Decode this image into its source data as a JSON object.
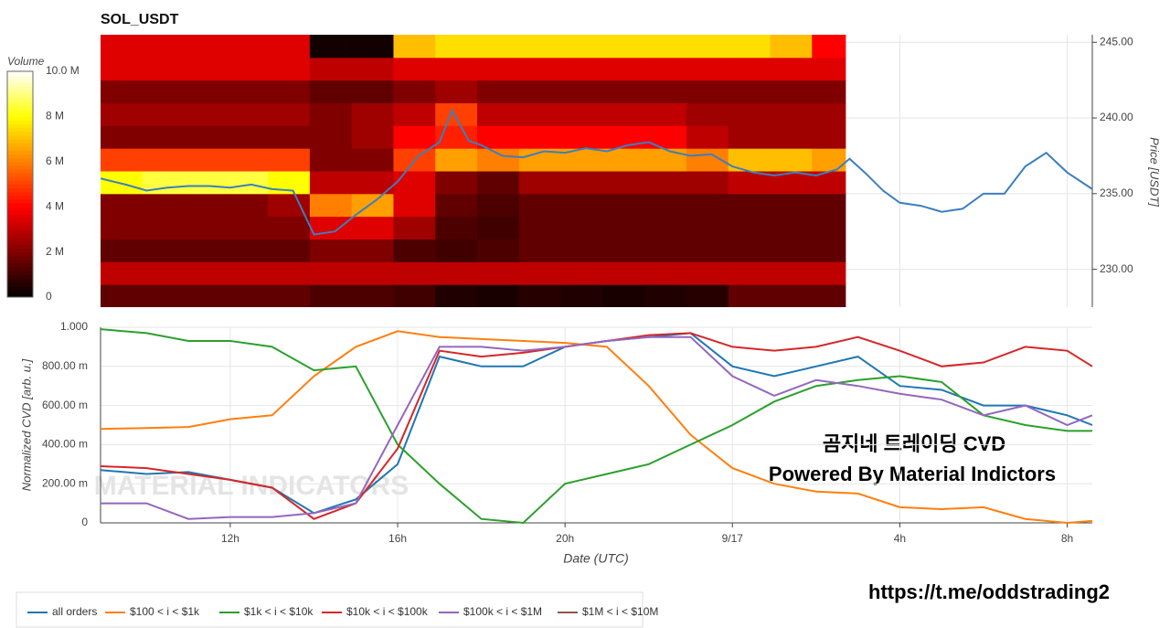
{
  "chart_data": [
    {
      "type": "heatmap",
      "title": "SOL_USDT",
      "y_label": "Price [USDT]",
      "xlim": [
        8.9,
        32.6
      ],
      "ylim": [
        227.5,
        245.5
      ],
      "yticks": [
        {
          "value": 230,
          "label": "230.00"
        },
        {
          "value": 235,
          "label": "235.00"
        },
        {
          "value": 240,
          "label": "240.00"
        },
        {
          "value": 245,
          "label": "245.00"
        }
      ],
      "x_edges": [
        8.9,
        9.9,
        10.9,
        11.9,
        12.9,
        13.9,
        14.9,
        15.9,
        16.9,
        17.9,
        18.9,
        19.9,
        20.9,
        21.9,
        22.9,
        23.9,
        24.9,
        25.9,
        26.7
      ],
      "y_edges": [
        227.5,
        229,
        230.5,
        232,
        233.5,
        235,
        236.5,
        238,
        239.5,
        241,
        242.5,
        244,
        245.5
      ],
      "z": [
        [
          1.5,
          1.5,
          1.5,
          1.5,
          1.5,
          1.2,
          1.2,
          1.0,
          0.5,
          0.4,
          0.6,
          0.5,
          0.4,
          0.5,
          0.6,
          1.5,
          1.5,
          1.5
        ],
        [
          3,
          3,
          3,
          3,
          3,
          3,
          3,
          3,
          3,
          3,
          3,
          3,
          3,
          3,
          3,
          3,
          3,
          3
        ],
        [
          1.5,
          1.5,
          1.5,
          1.5,
          1.5,
          2,
          2,
          1.2,
          1.0,
          1.2,
          1.5,
          1.5,
          1.5,
          1.5,
          1.5,
          1.5,
          1.5,
          1.5
        ],
        [
          2,
          2,
          2,
          2,
          2,
          3.5,
          3.5,
          2.5,
          1.2,
          1.0,
          1.5,
          1.5,
          1.5,
          1.5,
          1.5,
          1.5,
          1.5,
          1.5
        ],
        [
          2,
          2,
          2,
          2,
          2.5,
          6,
          6.5,
          3.5,
          1.5,
          1.2,
          1.5,
          1.5,
          1.5,
          1.5,
          1.5,
          1.5,
          1.5,
          1.5
        ],
        [
          8,
          8.5,
          8.5,
          8.5,
          8,
          3,
          3,
          3.5,
          2,
          1.5,
          2.5,
          2.5,
          2.5,
          2.5,
          2.5,
          3,
          3,
          3
        ],
        [
          5,
          5,
          5,
          5,
          5,
          2,
          2,
          5,
          6.5,
          6,
          6.5,
          6.5,
          6.5,
          6.5,
          6,
          7,
          7,
          6.5
        ],
        [
          2,
          2,
          2,
          2,
          2,
          2,
          2.5,
          4,
          4.5,
          4,
          4,
          4,
          4,
          4,
          3,
          2.5,
          2.5,
          2.5
        ],
        [
          2.5,
          2.5,
          2.5,
          2.5,
          2.5,
          2,
          2.5,
          3,
          5,
          3,
          3,
          3,
          3,
          3,
          2.5,
          2.5,
          2.5,
          2.5
        ],
        [
          2,
          2,
          2,
          2,
          2,
          1.5,
          1.5,
          2,
          2.5,
          2,
          2,
          2,
          2,
          2,
          2,
          2,
          2,
          2
        ],
        [
          3.5,
          3.5,
          3.5,
          3.5,
          3.5,
          3,
          3,
          3.5,
          3.5,
          3.5,
          3.5,
          3.5,
          3.5,
          3.5,
          3.5,
          3.5,
          3.5,
          3.5
        ],
        [
          3.5,
          3.5,
          3.5,
          3.5,
          3.5,
          0.3,
          0.3,
          7,
          7.5,
          7.5,
          7.5,
          7.5,
          7.5,
          7.5,
          7.5,
          7.5,
          7,
          4
        ]
      ],
      "colorbar": {
        "title": "Volume",
        "lim": [
          0,
          10
        ],
        "ticks": [
          0,
          {
            "value": 2,
            "label": "2 M"
          },
          {
            "value": 4,
            "label": "4 M"
          },
          {
            "value": 6,
            "label": "6 M"
          },
          {
            "value": 8,
            "label": "8 M"
          },
          {
            "value": 10,
            "label": "10.0 M"
          }
        ]
      },
      "price": {
        "color": "#3b7fbf",
        "x": [
          8.9,
          9.5,
          10,
          10.5,
          11,
          11.5,
          12,
          12.5,
          13,
          13.5,
          14,
          14.5,
          15,
          15.5,
          16,
          16.5,
          17,
          17.3,
          17.7,
          18,
          18.5,
          19,
          19.5,
          20,
          20.5,
          21,
          21.5,
          22,
          22.5,
          23,
          23.5,
          24,
          24.5,
          25,
          25.5,
          26,
          26.5,
          26.8,
          27.2,
          27.6,
          28,
          28.5,
          29,
          29.5,
          30,
          30.5,
          31,
          31.5,
          32,
          32.6
        ],
        "values": [
          236.0,
          235.6,
          235.2,
          235.4,
          235.5,
          235.5,
          235.4,
          235.6,
          235.3,
          235.2,
          232.3,
          232.5,
          233.6,
          234.6,
          235.8,
          237.5,
          238.4,
          240.5,
          238.5,
          238.2,
          237.5,
          237.4,
          237.8,
          237.7,
          238.0,
          237.8,
          238.2,
          238.4,
          237.8,
          237.5,
          237.6,
          236.8,
          236.4,
          236.2,
          236.4,
          236.2,
          236.6,
          237.3,
          236.3,
          235.2,
          234.4,
          234.2,
          233.8,
          234.0,
          235.0,
          235.0,
          236.8,
          237.7,
          236.4,
          235.3
        ]
      }
    },
    {
      "type": "line",
      "x_label": "Date (UTC)",
      "y_label": "Normalized CVD [arb. u.]",
      "xlim": [
        8.9,
        32.6
      ],
      "ylim": [
        0,
        1
      ],
      "xticks": [
        {
          "value": 12,
          "label": "12h"
        },
        {
          "value": 16,
          "label": "16h"
        },
        {
          "value": 20,
          "label": "20h"
        },
        {
          "value": 24,
          "label": "9/17"
        },
        {
          "value": 28,
          "label": "4h"
        },
        {
          "value": 32,
          "label": "8h"
        }
      ],
      "yticks": [
        0,
        {
          "value": 0.2,
          "label": "200.00 m"
        },
        {
          "value": 0.4,
          "label": "400.00 m"
        },
        {
          "value": 0.6,
          "label": "600.00 m"
        },
        {
          "value": 0.8,
          "label": "800.00 m"
        },
        {
          "value": 1,
          "label": "1.000"
        }
      ],
      "x": [
        8.9,
        10,
        11,
        12,
        13,
        14,
        15,
        16,
        17,
        18,
        19,
        20,
        21,
        22,
        23,
        24,
        25,
        26,
        27,
        28,
        29,
        30,
        31,
        32,
        32.6
      ],
      "series": [
        {
          "name": "all orders",
          "color": "#1f77b4",
          "values": [
            0.27,
            0.25,
            0.26,
            0.22,
            0.18,
            0.05,
            0.12,
            0.3,
            0.85,
            0.8,
            0.8,
            0.9,
            0.93,
            0.95,
            0.97,
            0.8,
            0.75,
            0.8,
            0.85,
            0.7,
            0.68,
            0.6,
            0.6,
            0.55,
            0.5
          ]
        },
        {
          "name": "$100 < i < $1k",
          "color": "#ff7f0e",
          "values": [
            0.48,
            0.485,
            0.49,
            0.53,
            0.55,
            0.75,
            0.9,
            0.98,
            0.95,
            0.94,
            0.93,
            0.92,
            0.9,
            0.7,
            0.45,
            0.28,
            0.2,
            0.16,
            0.15,
            0.08,
            0.07,
            0.08,
            0.02,
            0,
            0.01
          ]
        },
        {
          "name": "$1k < i < $10k",
          "color": "#2ca02c",
          "values": [
            0.99,
            0.97,
            0.93,
            0.93,
            0.9,
            0.78,
            0.8,
            0.4,
            0.2,
            0.02,
            0,
            0.2,
            0.25,
            0.3,
            0.4,
            0.5,
            0.62,
            0.7,
            0.73,
            0.75,
            0.72,
            0.55,
            0.5,
            0.47,
            0.47
          ]
        },
        {
          "name": "$10k < i < $100k",
          "color": "#d62728",
          "values": [
            0.29,
            0.28,
            0.25,
            0.22,
            0.18,
            0.02,
            0.1,
            0.38,
            0.88,
            0.85,
            0.87,
            0.9,
            0.93,
            0.96,
            0.97,
            0.9,
            0.88,
            0.9,
            0.95,
            0.88,
            0.8,
            0.82,
            0.9,
            0.88,
            0.8
          ]
        },
        {
          "name": "$100k < i < $1M",
          "color": "#9467bd",
          "values": [
            0.1,
            0.1,
            0.02,
            0.03,
            0.03,
            0.05,
            0.1,
            0.5,
            0.9,
            0.9,
            0.88,
            0.9,
            0.93,
            0.95,
            0.95,
            0.75,
            0.65,
            0.73,
            0.7,
            0.66,
            0.63,
            0.55,
            0.6,
            0.5,
            0.55
          ]
        },
        {
          "name": "$1M < i < $10M",
          "color": "#8c564b",
          "values": [
            null,
            null,
            null,
            null,
            null,
            null,
            null,
            null,
            null,
            null,
            null,
            null,
            null,
            null,
            null,
            null,
            null,
            null,
            null,
            null,
            null,
            null,
            null,
            null,
            null
          ]
        }
      ]
    }
  ],
  "annotations": {
    "watermark": "MATERIAL INDICATORS",
    "caption": "곰지네 트레이딩 CVD",
    "credit": "Powered By Material Indictors",
    "link": "https://t.me/oddstrading2"
  }
}
